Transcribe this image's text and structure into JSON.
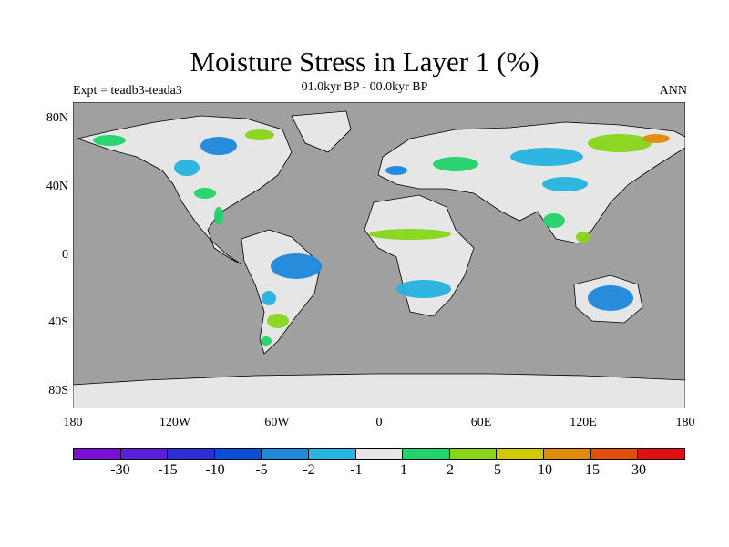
{
  "title": "Moisture Stress in Layer 1 (%)",
  "subtitle": "01.0kyr BP - 00.0kyr BP",
  "experiment_label": "Expt = teadb3-teada3",
  "season_label": "ANN",
  "colors": {
    "ocean": "#a0a0a0",
    "neutral_land": "#e6e6e6"
  },
  "map": {
    "lat_ticks": [
      "80N",
      "40N",
      "0",
      "40S",
      "80S"
    ],
    "lon_ticks": [
      "180",
      "120W",
      "60W",
      "0",
      "60E",
      "120E",
      "180"
    ]
  },
  "colorbar": {
    "colors": [
      "#7a0fd6",
      "#5a1fd6",
      "#2d2fd6",
      "#0a4fd6",
      "#1e88dc",
      "#26b4e0",
      "#e6e6e6",
      "#22d46a",
      "#88d61a",
      "#d2c80a",
      "#e08c0a",
      "#e0500a",
      "#e01010"
    ],
    "labels": [
      "-30",
      "-15",
      "-10",
      "-5",
      "-2",
      "-1",
      "1",
      "2",
      "5",
      "10",
      "15",
      "30"
    ]
  }
}
